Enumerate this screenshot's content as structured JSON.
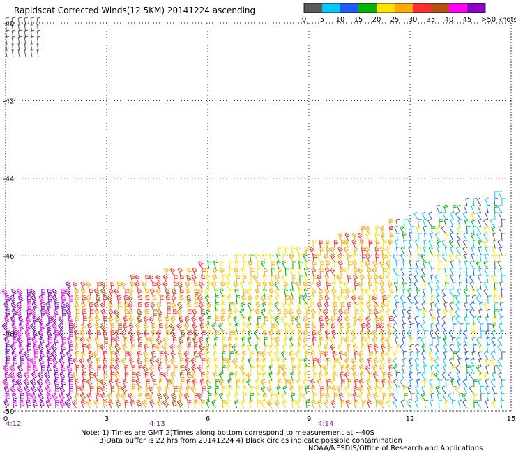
{
  "title": "Rapidscat Corrected Winds(12.5KM) 20141224 ascending",
  "colorbar": {
    "labels": [
      "0",
      "5",
      "10",
      "15",
      "20",
      "25",
      "30",
      "35",
      "40",
      "45",
      ">50 knots"
    ],
    "colors": [
      "#5a5a5a",
      "#00c8ff",
      "#1e5aff",
      "#00b400",
      "#ffe100",
      "#ffaa00",
      "#ff2d2d",
      "#b45014",
      "#ff00ff",
      "#8c00c8"
    ]
  },
  "notes": [
    "Note: 1) Times are GMT 2)Times along bottom correspond to measurement at ~40S",
    "3)Data buffer is 22 hrs from 20141224 4) Black circles indicate possible contamination",
    "NOAA/NESDIS/Office of Research and Applications"
  ],
  "chart_data": {
    "type": "wind barb map",
    "x_ticks": [
      "0",
      "3",
      "6",
      "9",
      "12",
      "15"
    ],
    "y_ticks": [
      "-40",
      "-42",
      "-44",
      "-46",
      "-48",
      "-50"
    ],
    "time_labels": [
      "4:12",
      "4:13",
      "4:14"
    ],
    "xlim": [
      0,
      15
    ],
    "ylim": [
      -50,
      -40
    ],
    "grid": true,
    "swath": [
      {
        "x": 0,
        "y_top": -47.0
      },
      {
        "x": 3,
        "y_top": -46.8
      },
      {
        "x": 6,
        "y_top": -46.3
      },
      {
        "x": 9,
        "y_top": -45.8
      },
      {
        "x": 12,
        "y_top": -45.1
      },
      {
        "x": 15,
        "y_top": -44.4
      }
    ],
    "corner_patch": {
      "x": [
        0,
        1
      ],
      "y": [
        -41,
        -40
      ]
    },
    "speed_zones": [
      {
        "x": [
          0,
          2
        ],
        "speed_knots": 47
      },
      {
        "x": [
          2,
          6
        ],
        "speed_knots": 32
      },
      {
        "x": [
          6,
          9
        ],
        "speed_knots": 23
      },
      {
        "x": [
          9,
          11.5
        ],
        "speed_knots": 28
      },
      {
        "x": [
          11.5,
          15
        ],
        "speed_knots": 8
      }
    ]
  }
}
